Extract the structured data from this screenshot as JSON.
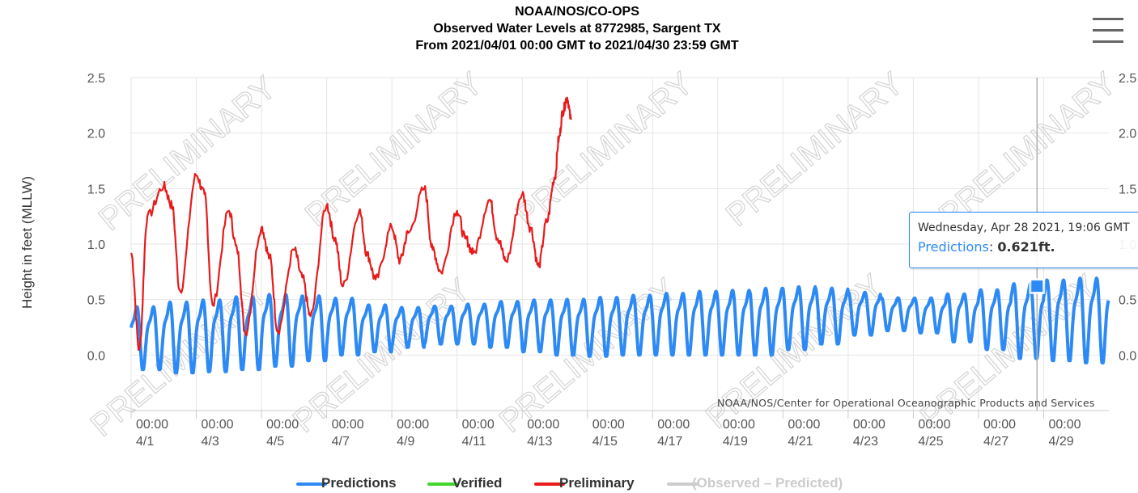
{
  "chart_data": {
    "type": "line",
    "title": [
      "NOAA/NOS/CO-OPS",
      "Observed Water Levels at 8772985, Sargent TX",
      "From 2021/04/01 00:00 GMT to 2021/04/30 23:59 GMT"
    ],
    "ylabel": "Height in feet (MLLW)",
    "xlabel": "",
    "ylim": [
      -0.5,
      2.5
    ],
    "ytick_labels": [
      "0.0",
      "0.5",
      "1.0",
      "1.5",
      "2.0",
      "2.5"
    ],
    "xlim": [
      "2021-04-01T00:00",
      "2021-04-30T23:59"
    ],
    "x_tick_labels": [
      {
        "time": "00:00",
        "date": "4/1"
      },
      {
        "time": "00:00",
        "date": "4/3"
      },
      {
        "time": "00:00",
        "date": "4/5"
      },
      {
        "time": "00:00",
        "date": "4/7"
      },
      {
        "time": "00:00",
        "date": "4/9"
      },
      {
        "time": "00:00",
        "date": "4/11"
      },
      {
        "time": "00:00",
        "date": "4/13"
      },
      {
        "time": "00:00",
        "date": "4/15"
      },
      {
        "time": "00:00",
        "date": "4/17"
      },
      {
        "time": "00:00",
        "date": "4/19"
      },
      {
        "time": "00:00",
        "date": "4/21"
      },
      {
        "time": "00:00",
        "date": "4/23"
      },
      {
        "time": "00:00",
        "date": "4/25"
      },
      {
        "time": "00:00",
        "date": "4/27"
      },
      {
        "time": "00:00",
        "date": "4/29"
      }
    ],
    "grid": true,
    "legend_position": "bottom",
    "watermark": "PRELIMINARY",
    "credit": "NOAA/NOS/Center for Operational Oceanographic Products and Services",
    "series": [
      {
        "name": "Predictions",
        "color": "#2d8af5",
        "x": [
          "2021-04-01",
          "2021-04-02",
          "2021-04-03",
          "2021-04-04",
          "2021-04-05",
          "2021-04-06",
          "2021-04-07",
          "2021-04-08",
          "2021-04-09",
          "2021-04-10",
          "2021-04-11",
          "2021-04-12",
          "2021-04-13",
          "2021-04-14",
          "2021-04-15",
          "2021-04-16",
          "2021-04-17",
          "2021-04-18",
          "2021-04-19",
          "2021-04-20",
          "2021-04-21",
          "2021-04-22",
          "2021-04-23",
          "2021-04-24",
          "2021-04-25",
          "2021-04-26",
          "2021-04-27",
          "2021-04-28",
          "2021-04-29",
          "2021-04-30"
        ],
        "daily_high": [
          0.5,
          0.55,
          0.57,
          0.6,
          0.62,
          0.6,
          0.57,
          0.5,
          0.47,
          0.48,
          0.5,
          0.53,
          0.55,
          0.56,
          0.58,
          0.6,
          0.62,
          0.64,
          0.65,
          0.67,
          0.68,
          0.66,
          0.61,
          0.55,
          0.55,
          0.6,
          0.65,
          0.72,
          0.76,
          0.78
        ],
        "daily_low": [
          -0.13,
          -0.16,
          -0.15,
          -0.13,
          -0.1,
          -0.05,
          0.0,
          0.03,
          0.07,
          0.1,
          0.1,
          0.07,
          0.03,
          0.0,
          -0.01,
          0.0,
          0.0,
          0.0,
          0.0,
          0.0,
          0.05,
          0.1,
          0.18,
          0.22,
          0.2,
          0.12,
          0.05,
          -0.03,
          -0.05,
          -0.07
        ]
      },
      {
        "name": "Verified",
        "color": "#41d52e",
        "x": [],
        "y": []
      },
      {
        "name": "Preliminary",
        "color": "#e81a1a",
        "x": [
          "2021-04-01T00:00",
          "2021-04-01T06:00",
          "2021-04-01T12:00",
          "2021-04-02T00:00",
          "2021-04-02T06:00",
          "2021-04-02T12:00",
          "2021-04-03T00:00",
          "2021-04-03T06:00",
          "2021-04-03T12:00",
          "2021-04-04T00:00",
          "2021-04-04T06:00",
          "2021-04-04T12:00",
          "2021-04-05T00:00",
          "2021-04-05T06:00",
          "2021-04-05T12:00",
          "2021-04-06T00:00",
          "2021-04-06T06:00",
          "2021-04-06T12:00",
          "2021-04-07T00:00",
          "2021-04-07T06:00",
          "2021-04-07T12:00",
          "2021-04-08T00:00",
          "2021-04-08T06:00",
          "2021-04-08T12:00",
          "2021-04-09T00:00",
          "2021-04-09T06:00",
          "2021-04-09T12:00",
          "2021-04-10T00:00",
          "2021-04-10T06:00",
          "2021-04-10T12:00",
          "2021-04-11T00:00",
          "2021-04-11T06:00",
          "2021-04-11T12:00",
          "2021-04-12T00:00",
          "2021-04-12T06:00",
          "2021-04-12T12:00",
          "2021-04-13T00:00",
          "2021-04-13T06:00",
          "2021-04-13T12:00",
          "2021-04-13T18:00",
          "2021-04-14T00:00",
          "2021-04-14T03:00",
          "2021-04-14T06:00",
          "2021-04-14T09:00",
          "2021-04-14T12:00"
        ],
        "y": [
          0.92,
          0.05,
          1.25,
          1.52,
          1.35,
          0.58,
          1.62,
          1.45,
          0.45,
          1.3,
          0.95,
          0.2,
          1.15,
          0.88,
          0.22,
          0.95,
          0.7,
          0.35,
          1.35,
          1.05,
          0.62,
          1.3,
          0.9,
          0.68,
          1.15,
          0.85,
          1.1,
          1.5,
          0.95,
          0.75,
          1.3,
          1.05,
          0.92,
          1.4,
          1.05,
          0.85,
          1.45,
          1.15,
          0.8,
          1.2,
          1.6,
          1.95,
          2.2,
          2.32,
          2.12
        ]
      },
      {
        "name": "(Observed – Predicted)",
        "color": "#cccccc",
        "x": [],
        "y": []
      }
    ],
    "tooltip": {
      "date": "Wednesday, Apr 28 2021, 19:06 GMT",
      "series": "Predictions",
      "value_text": "0.621ft.",
      "x": "2021-04-28T19:06",
      "y": 0.621
    }
  }
}
